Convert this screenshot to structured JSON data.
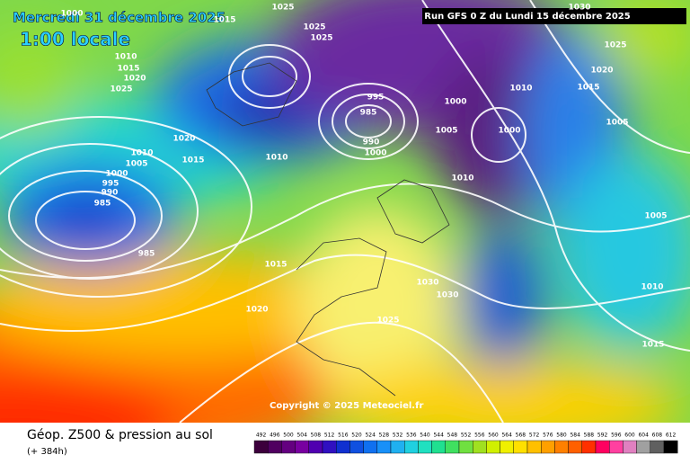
{
  "header": {
    "date": "Mercredi 31 décembre 2025",
    "time": "1:00 locale",
    "run": "Run GFS 0 Z du Lundi 15 décembre 2025"
  },
  "map": {
    "isobar_labels": [
      1000,
      1015,
      1025,
      1025,
      1025,
      1010,
      1015,
      1020,
      1025,
      1000,
      1000,
      1005,
      1010,
      995,
      985,
      990,
      1000,
      1010,
      1015,
      1020,
      1010,
      1005,
      1000,
      995,
      990,
      985,
      985,
      1015,
      1020,
      1030,
      1030,
      1025,
      1020,
      1015,
      1005,
      1010,
      1025,
      1005,
      1010,
      1015,
      1030
    ],
    "copyright": "Copyright © 2025 Meteociel.fr"
  },
  "footer": {
    "title": "Géop. Z500 & pression au sol",
    "lead": "(+ 384h)"
  },
  "colorbar": {
    "labels": [
      492,
      496,
      500,
      504,
      508,
      512,
      516,
      520,
      524,
      528,
      532,
      536,
      540,
      544,
      548,
      552,
      556,
      560,
      564,
      568,
      572,
      576,
      580,
      584,
      588,
      592,
      596,
      600,
      604,
      608,
      612
    ]
  }
}
